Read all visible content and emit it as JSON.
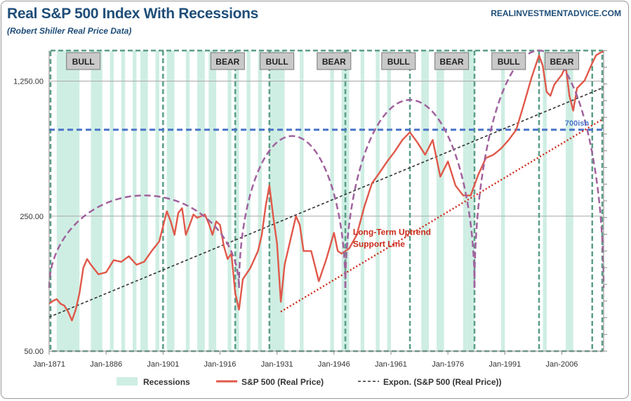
{
  "chart_data": {
    "type": "line",
    "title": "Real S&P 500 Index With Recessions",
    "subtitle": "(Robert Shiller Real Price Data)",
    "source": "REALINVESTMENTADVICE.COM",
    "yscale": "log",
    "ylim": [
      50,
      1800
    ],
    "xlim": [
      1871,
      2017
    ],
    "y_ticks": [
      {
        "value": 50,
        "label": "50.00"
      },
      {
        "value": 250,
        "label": "250.00"
      },
      {
        "value": 1250,
        "label": "1,250.00"
      }
    ],
    "x_ticks": [
      {
        "value": 1871,
        "label": "Jan-1871"
      },
      {
        "value": 1886,
        "label": "Jan-1886"
      },
      {
        "value": 1901,
        "label": "Jan-1901"
      },
      {
        "value": 1916,
        "label": "Jan-1916"
      },
      {
        "value": 1931,
        "label": "Jan-1931"
      },
      {
        "value": 1946,
        "label": "Jan-1946"
      },
      {
        "value": 1961,
        "label": "Jan-1961"
      },
      {
        "value": 1976,
        "label": "Jan-1976"
      },
      {
        "value": 1991,
        "label": "Jan-1991"
      },
      {
        "value": 2006,
        "label": "Jan-2006"
      }
    ],
    "series": [
      {
        "name": "S&P 500 (Real Price)",
        "color": "#e0584a",
        "x": [
          1871,
          1872,
          1873,
          1874,
          1875,
          1876,
          1877,
          1878,
          1879,
          1880,
          1881,
          1882,
          1884,
          1886,
          1888,
          1890,
          1892,
          1894,
          1896,
          1898,
          1900,
          1902,
          1903,
          1904,
          1905,
          1906,
          1907,
          1908,
          1909,
          1910,
          1911,
          1912,
          1913,
          1914,
          1915,
          1916,
          1917,
          1918,
          1919,
          1920,
          1921,
          1922,
          1924,
          1926,
          1927,
          1928,
          1929,
          1930,
          1931,
          1932,
          1933,
          1934,
          1936,
          1937,
          1938,
          1940,
          1942,
          1944,
          1946,
          1947,
          1948,
          1950,
          1952,
          1954,
          1956,
          1958,
          1960,
          1962,
          1964,
          1966,
          1968,
          1970,
          1972,
          1974,
          1976,
          1978,
          1980,
          1982,
          1984,
          1986,
          1988,
          1990,
          1992,
          1994,
          1996,
          1998,
          2000,
          2001,
          2002,
          2003,
          2004,
          2006,
          2007,
          2008,
          2009,
          2010,
          2012,
          2014,
          2015,
          2016,
          2017
        ],
        "values": [
          88,
          91,
          93,
          88,
          86,
          80,
          72,
          82,
          100,
          135,
          150,
          140,
          125,
          128,
          148,
          145,
          155,
          140,
          145,
          165,
          185,
          265,
          235,
          200,
          260,
          275,
          200,
          225,
          255,
          245,
          250,
          255,
          230,
          200,
          235,
          225,
          175,
          150,
          160,
          100,
          82,
          118,
          135,
          165,
          200,
          280,
          360,
          250,
          180,
          90,
          140,
          170,
          250,
          225,
          165,
          165,
          115,
          150,
          205,
          165,
          160,
          170,
          200,
          280,
          370,
          420,
          480,
          540,
          620,
          680,
          600,
          520,
          620,
          400,
          480,
          360,
          320,
          320,
          410,
          500,
          520,
          560,
          620,
          700,
          950,
          1300,
          1700,
          1500,
          1100,
          1050,
          1200,
          1350,
          1500,
          1050,
          880,
          1150,
          1260,
          1550,
          1700,
          1750,
          1780
        ]
      },
      {
        "name": "Expon. (S&P 500 (Real Price))",
        "color": "#333333",
        "x": [
          1871,
          2017
        ],
        "values": [
          75,
          1160
        ]
      }
    ],
    "recessions_label": "Recessions",
    "recession_periods": [
      [
        1873,
        1879
      ],
      [
        1882,
        1885
      ],
      [
        1887,
        1888
      ],
      [
        1890,
        1891
      ],
      [
        1893,
        1894
      ],
      [
        1895,
        1897
      ],
      [
        1899,
        1900
      ],
      [
        1902,
        1904
      ],
      [
        1907,
        1908
      ],
      [
        1910,
        1912
      ],
      [
        1913,
        1915
      ],
      [
        1918,
        1919
      ],
      [
        1920,
        1921
      ],
      [
        1923,
        1924
      ],
      [
        1926,
        1927
      ],
      [
        1929,
        1933
      ],
      [
        1937,
        1938
      ],
      [
        1945,
        1946
      ],
      [
        1948,
        1950
      ],
      [
        1953,
        1954
      ],
      [
        1957,
        1958
      ],
      [
        1960,
        1961
      ],
      [
        1969,
        1971
      ],
      [
        1973,
        1975
      ],
      [
        1980,
        1981
      ],
      [
        1981,
        1983
      ],
      [
        1990,
        1991
      ],
      [
        2001,
        2002
      ],
      [
        2007,
        2009
      ]
    ],
    "cycles": [
      {
        "label": "BULL",
        "start": 1871,
        "end": 1918
      },
      {
        "label": "BEAR",
        "start": 1901,
        "end": 1920
      },
      {
        "label": "BULL",
        "start": 1920,
        "end": 1929
      },
      {
        "label": "BEAR",
        "start": 1929,
        "end": 1949
      },
      {
        "label": "BULL",
        "start": 1949,
        "end": 1966
      },
      {
        "label": "BEAR",
        "start": 1966,
        "end": 1983
      },
      {
        "label": "BULL",
        "start": 1983,
        "end": 2000
      },
      {
        "label": "BEAR",
        "start": 2000,
        "end": 2016
      }
    ],
    "cycle_dividers": [
      1901,
      1920,
      1929,
      1949,
      1966,
      1983,
      2000,
      2014
    ],
    "reference_line": {
      "label": "700ish",
      "value": 700
    },
    "support_line": {
      "label_line1": "Long-Term Uptrend",
      "label_line2": "Support Line",
      "x": [
        1932,
        2017
      ],
      "values": [
        80,
        800
      ]
    },
    "arcs": [
      {
        "start": 1871,
        "end": 1921,
        "peak": 320
      },
      {
        "start": 1921,
        "end": 1949,
        "peak": 650
      },
      {
        "start": 1949,
        "end": 1983,
        "peak": 1000
      },
      {
        "start": 1983,
        "end": 2017,
        "peak": 1800
      }
    ]
  },
  "legend": {
    "recessions": "Recessions",
    "sp500": "S&P 500 (Real Price)",
    "expon": "Expon. (S&P 500 (Real Price))"
  },
  "colors": {
    "title": "#1f4e79",
    "recession": "#cfeee3",
    "price": "#e0584a",
    "box": "#5a9e86",
    "arc": "#a0629e",
    "ref": "#4a74c8",
    "support": "#cc2a1a",
    "label_bg": "#c9c9c9"
  }
}
